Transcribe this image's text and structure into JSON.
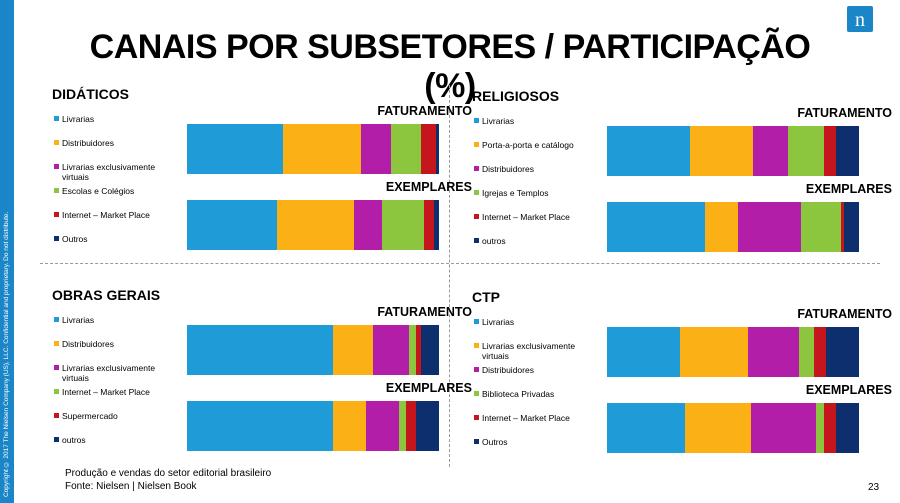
{
  "title": "CANAIS POR SUBSETORES / PARTICIPAÇÃO (%)",
  "sidebar_text": "Copyright © 2017 The Nielsen Company (US), LLC. Confidential and proprietary. Do not distribute.",
  "logo_letter": "n",
  "footer": {
    "line1": "Produção e vendas do setor editorial brasileiro",
    "line2": "Fonte: Nielsen | Nielsen Book"
  },
  "page_number": "23",
  "labels": {
    "faturamento": "FATURAMENTO",
    "exemplares": "EXEMPLARES"
  },
  "colors": {
    "brand": "#1a86c8"
  },
  "chart_data": [
    {
      "type": "bar",
      "stacked": true,
      "orientation": "horizontal",
      "title": "DIDÁTICOS",
      "categories": [
        "FATURAMENTO",
        "EXEMPLARES"
      ],
      "series": [
        {
          "name": "Livrarias",
          "color": "#1f9bd7",
          "values": [
            38,
            36
          ]
        },
        {
          "name": "Distribuidores",
          "color": "#fbb116",
          "values": [
            31,
            31
          ]
        },
        {
          "name": "Livrarias exclusivamente virtuais",
          "color": "#b31ea8",
          "values": [
            12,
            11
          ]
        },
        {
          "name": "Escolas e Colégios",
          "color": "#8cc63f",
          "values": [
            12,
            17
          ]
        },
        {
          "name": "Internet – Market Place",
          "color": "#c4161c",
          "values": [
            6,
            4
          ]
        },
        {
          "name": "Outros",
          "color": "#0d2f6e",
          "values": [
            1,
            2
          ]
        }
      ]
    },
    {
      "type": "bar",
      "stacked": true,
      "orientation": "horizontal",
      "title": "RELIGIOSOS",
      "categories": [
        "FATURAMENTO",
        "EXEMPLARES"
      ],
      "series": [
        {
          "name": "Livrarias",
          "color": "#1f9bd7",
          "values": [
            33,
            39
          ]
        },
        {
          "name": "Porta-a-porta e catálogo",
          "color": "#fbb116",
          "values": [
            25,
            13
          ]
        },
        {
          "name": "Distribuidores",
          "color": "#b31ea8",
          "values": [
            14,
            25
          ]
        },
        {
          "name": "Igrejas e Templos",
          "color": "#8cc63f",
          "values": [
            14,
            16
          ]
        },
        {
          "name": "Internet – Market Place",
          "color": "#c4161c",
          "values": [
            5,
            1
          ]
        },
        {
          "name": "outros",
          "color": "#0d2f6e",
          "values": [
            9,
            6
          ]
        }
      ]
    },
    {
      "type": "bar",
      "stacked": true,
      "orientation": "horizontal",
      "title": "OBRAS GERAIS",
      "categories": [
        "FATURAMENTO",
        "EXEMPLARES"
      ],
      "series": [
        {
          "name": "Livrarias",
          "color": "#1f9bd7",
          "values": [
            58,
            58
          ]
        },
        {
          "name": "Distribuidores",
          "color": "#fbb116",
          "values": [
            16,
            13
          ]
        },
        {
          "name": "Livrarias exclusivamente virtuais",
          "color": "#b31ea8",
          "values": [
            14,
            13
          ]
        },
        {
          "name": "Internet – Market Place",
          "color": "#8cc63f",
          "values": [
            3,
            3
          ]
        },
        {
          "name": "Supermercado",
          "color": "#c4161c",
          "values": [
            2,
            4
          ]
        },
        {
          "name": "outros",
          "color": "#0d2f6e",
          "values": [
            7,
            9
          ]
        }
      ]
    },
    {
      "type": "bar",
      "stacked": true,
      "orientation": "horizontal",
      "title": "CTP",
      "categories": [
        "FATURAMENTO",
        "EXEMPLARES"
      ],
      "series": [
        {
          "name": "Livrarias",
          "color": "#1f9bd7",
          "values": [
            29,
            31
          ]
        },
        {
          "name": "Livrarias exclusivamente virtuais",
          "color": "#fbb116",
          "values": [
            27,
            26
          ]
        },
        {
          "name": "Distribuidores",
          "color": "#b31ea8",
          "values": [
            20,
            26
          ]
        },
        {
          "name": "Biblioteca Privadas",
          "color": "#8cc63f",
          "values": [
            6,
            3
          ]
        },
        {
          "name": "Internet – Market Place",
          "color": "#c4161c",
          "values": [
            5,
            5
          ]
        },
        {
          "name": "Outros",
          "color": "#0d2f6e",
          "values": [
            13,
            9
          ]
        }
      ]
    }
  ]
}
